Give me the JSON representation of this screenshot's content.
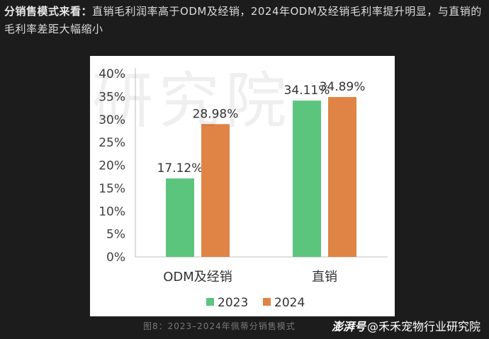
{
  "heading": {
    "lead": "分销售模式来看：",
    "text": "直销毛利润率高于ODM及经销，2024年ODM及经销毛利率提升明显，与直销的毛利率差距大幅缩小"
  },
  "watermark": "研究院",
  "caption": "图8：2023–2024年佩蒂分销售模式",
  "credit": {
    "brand": "澎湃号",
    "author": "@禾禾宠物行业研究院"
  },
  "colors": {
    "series_2023": "#5cc57d",
    "series_2024": "#df8444"
  },
  "chart_data": {
    "type": "bar",
    "categories": [
      "ODM及经销",
      "直销"
    ],
    "series": [
      {
        "name": "2023",
        "values": [
          17.12,
          34.11
        ],
        "labels": [
          "17.12%",
          "34.11%"
        ]
      },
      {
        "name": "2024",
        "values": [
          28.98,
          34.89
        ],
        "labels": [
          "28.98%",
          "34.89%"
        ]
      }
    ],
    "yticks": [
      "0%",
      "5%",
      "10%",
      "15%",
      "20%",
      "25%",
      "30%",
      "35%",
      "40%"
    ],
    "ylim": [
      0,
      40
    ],
    "legend": "bottom",
    "grid": false
  }
}
